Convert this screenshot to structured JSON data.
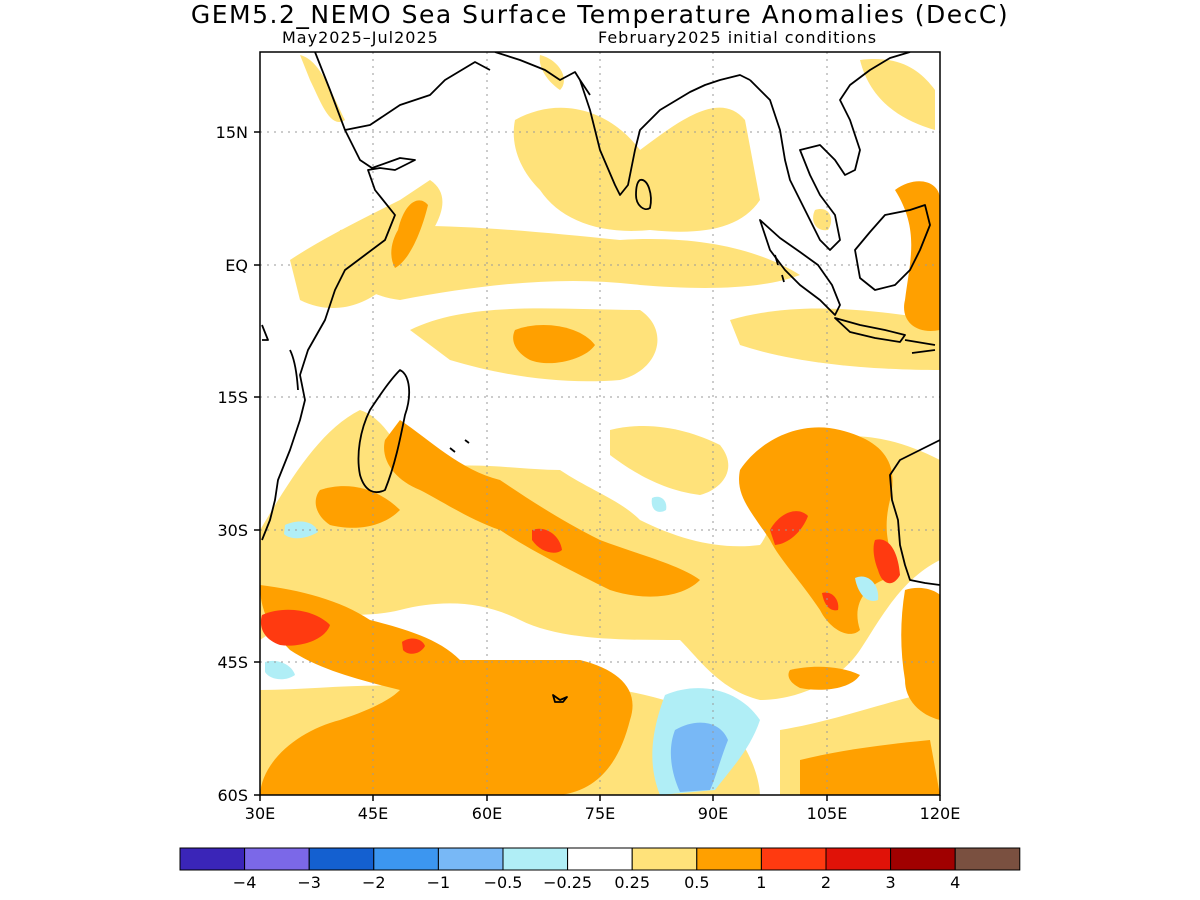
{
  "title": "GEM5.2_NEMO Sea Surface Temperature Anomalies (DecC)",
  "subtitle_left": "May2025–Jul2025",
  "subtitle_right": "February2025 initial conditions",
  "axes": {
    "lon_labels": [
      "30E",
      "45E",
      "60E",
      "75E",
      "90E",
      "105E",
      "120E"
    ],
    "lat_labels": [
      "15N",
      "EQ",
      "15S",
      "30S",
      "45S",
      "60S"
    ]
  },
  "colorbar": {
    "labels": [
      "−4",
      "−3",
      "−2",
      "−1",
      "−0.5",
      "−0.25",
      "0.25",
      "0.5",
      "1",
      "2",
      "3",
      "4"
    ],
    "colors": [
      "#3a25b8",
      "#7b68e8",
      "#1460d0",
      "#3c96f0",
      "#78b8f6",
      "#b0eef6",
      "#ffffff",
      "#ffe27a",
      "#ffa000",
      "#ff3a10",
      "#e01208",
      "#a00000",
      "#7a5040"
    ]
  },
  "colors": {
    "land_outline": "#000000",
    "grid": "#9a9a9a"
  }
}
